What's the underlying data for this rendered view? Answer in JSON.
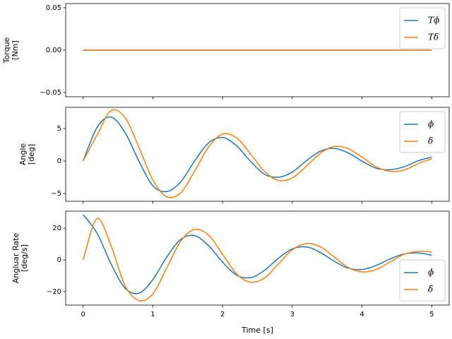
{
  "chart_data": [
    {
      "type": "line",
      "ylabel": [
        "Torque",
        "[Nm]"
      ],
      "legend": "upper right",
      "x": [
        0,
        5
      ],
      "xlim": [
        -0.25,
        5.25
      ],
      "xticks": [
        0,
        1,
        2,
        3,
        4,
        5
      ],
      "ylim": [
        -0.055,
        0.055
      ],
      "yticks": [
        {
          "value": -0.05,
          "label": "−0.05"
        },
        {
          "value": 0,
          "label": "0.00"
        },
        0.05
      ],
      "series": [
        {
          "name": "Tϕ",
          "color": "#1f77b4",
          "values": [
            0,
            0
          ]
        },
        {
          "name": "Tδ",
          "color": "#ff7f0e",
          "values": [
            0,
            0
          ]
        }
      ]
    },
    {
      "type": "line",
      "ylabel": [
        "Angle",
        "[deg]"
      ],
      "legend": "upper right",
      "x": [
        0,
        0.2,
        0.4,
        0.6,
        0.8,
        1.0,
        1.2,
        1.4,
        1.6,
        1.8,
        2.0,
        2.2,
        2.4,
        2.6,
        2.8,
        3.0,
        3.2,
        3.4,
        3.6,
        3.8,
        4.0,
        4.2,
        4.4,
        4.6,
        4.8,
        5.0
      ],
      "xlim": [
        -0.25,
        5.25
      ],
      "xticks": [
        0,
        1,
        2,
        3,
        4,
        5
      ],
      "ylim": [
        -6.2,
        8.26
      ],
      "yticks": [
        {
          "value": -5,
          "label": "−5"
        },
        0,
        5
      ],
      "series": [
        {
          "name": "ϕ",
          "color": "#1f77b4",
          "values": [
            0,
            5.17,
            6.76,
            4.41,
            0.0,
            -3.79,
            -4.7,
            -3.22,
            0.02,
            2.79,
            3.62,
            2.35,
            -0.03,
            -2.04,
            -2.5,
            -1.71,
            0.02,
            1.5,
            1.94,
            1.25,
            -0.02,
            -1.1,
            -1.35,
            -0.91,
            0.02,
            0.6
          ]
        },
        {
          "name": "δ",
          "color": "#ff7f0e",
          "values": [
            0,
            4.0,
            7.73,
            6.69,
            2.13,
            -2.93,
            -5.5,
            -4.9,
            -1.55,
            2.16,
            4.15,
            3.58,
            1.12,
            -1.59,
            -3.0,
            -2.61,
            -0.82,
            1.17,
            2.23,
            1.91,
            0.59,
            -0.86,
            -1.6,
            -1.4,
            -0.43,
            0.35
          ]
        }
      ]
    },
    {
      "type": "line",
      "ylabel": [
        "Angluar Rate",
        "[deg/s]"
      ],
      "xlabel": "Time [s]",
      "legend": "lower right",
      "x": [
        0,
        0.2,
        0.4,
        0.6,
        0.8,
        1.0,
        1.2,
        1.4,
        1.6,
        1.8,
        2.0,
        2.2,
        2.4,
        2.6,
        2.8,
        3.0,
        3.2,
        3.4,
        3.6,
        3.8,
        4.0,
        4.2,
        4.4,
        4.6,
        4.8,
        5.0
      ],
      "xlim": [
        -0.25,
        5.25
      ],
      "xticks": [
        0,
        1,
        2,
        3,
        4,
        5
      ],
      "ylim": [
        -28.4,
        30.7
      ],
      "yticks": [
        {
          "value": -20,
          "label": "−20"
        },
        0,
        20
      ],
      "series": [
        {
          "name": "ϕ̇",
          "color": "#1f77b4",
          "values": [
            28.6,
            16.84,
            -2.46,
            -17.6,
            -20.93,
            -12.33,
            1.85,
            12.93,
            15.32,
            8.97,
            -1.38,
            -9.48,
            -11.2,
            -6.56,
            1.04,
            6.95,
            8.2,
            4.79,
            -0.77,
            -5.1,
            -6.0,
            -3.5,
            0.58,
            3.74,
            4.4,
            3.0
          ]
        },
        {
          "name": "δ̇",
          "color": "#ff7f0e",
          "values": [
            0,
            26,
            9,
            -16.0,
            -25.5,
            -21.4,
            -4.92,
            11.8,
            19.2,
            15.6,
            3.56,
            -8.68,
            -14.0,
            -11.4,
            -2.57,
            6.38,
            10.3,
            8.35,
            1.87,
            -4.68,
            -7.5,
            -6.11,
            -1.35,
            3.44,
            5.4,
            5.0
          ]
        }
      ]
    }
  ]
}
